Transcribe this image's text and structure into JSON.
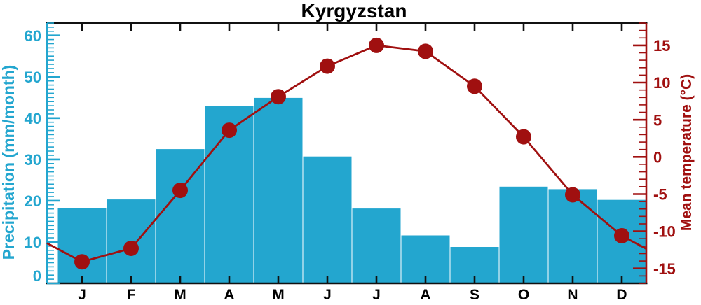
{
  "chart_data": {
    "type": "combo",
    "title": "Kyrgyzstan",
    "categories": [
      "J",
      "F",
      "M",
      "A",
      "M",
      "J",
      "J",
      "A",
      "S",
      "O",
      "N",
      "D"
    ],
    "series": [
      {
        "name": "Precipitation",
        "type": "bar",
        "axis": "left",
        "unit": "mm/month",
        "color": "#23A6CF",
        "values": [
          18.2,
          20.3,
          32.5,
          42.9,
          44.9,
          30.7,
          18.1,
          11.6,
          8.8,
          23.4,
          22.8,
          20.2
        ]
      },
      {
        "name": "Mean temperature",
        "type": "line",
        "axis": "right",
        "unit": "°C",
        "color": "#A01010",
        "marker": "circle",
        "values": [
          -14.1,
          -12.3,
          -4.5,
          3.6,
          8.1,
          12.2,
          15.0,
          14.2,
          9.5,
          2.7,
          -5.1,
          -10.6
        ]
      }
    ],
    "left_axis": {
      "label": "Precipitation (mm/month)",
      "ticks": [
        0,
        10,
        20,
        30,
        40,
        50,
        60
      ],
      "range": [
        0,
        63
      ],
      "minor_step": 1,
      "major_step": 10
    },
    "right_axis": {
      "label": "Mean temperature (°C)",
      "ticks": [
        -15,
        -10,
        -5,
        0,
        5,
        10,
        15
      ],
      "range": [
        -17,
        18
      ],
      "minor_step": 1,
      "major_step": 5
    },
    "grid": false,
    "legend": false,
    "line_extends_to_plot_edges": true,
    "frame_color": "#111111"
  }
}
